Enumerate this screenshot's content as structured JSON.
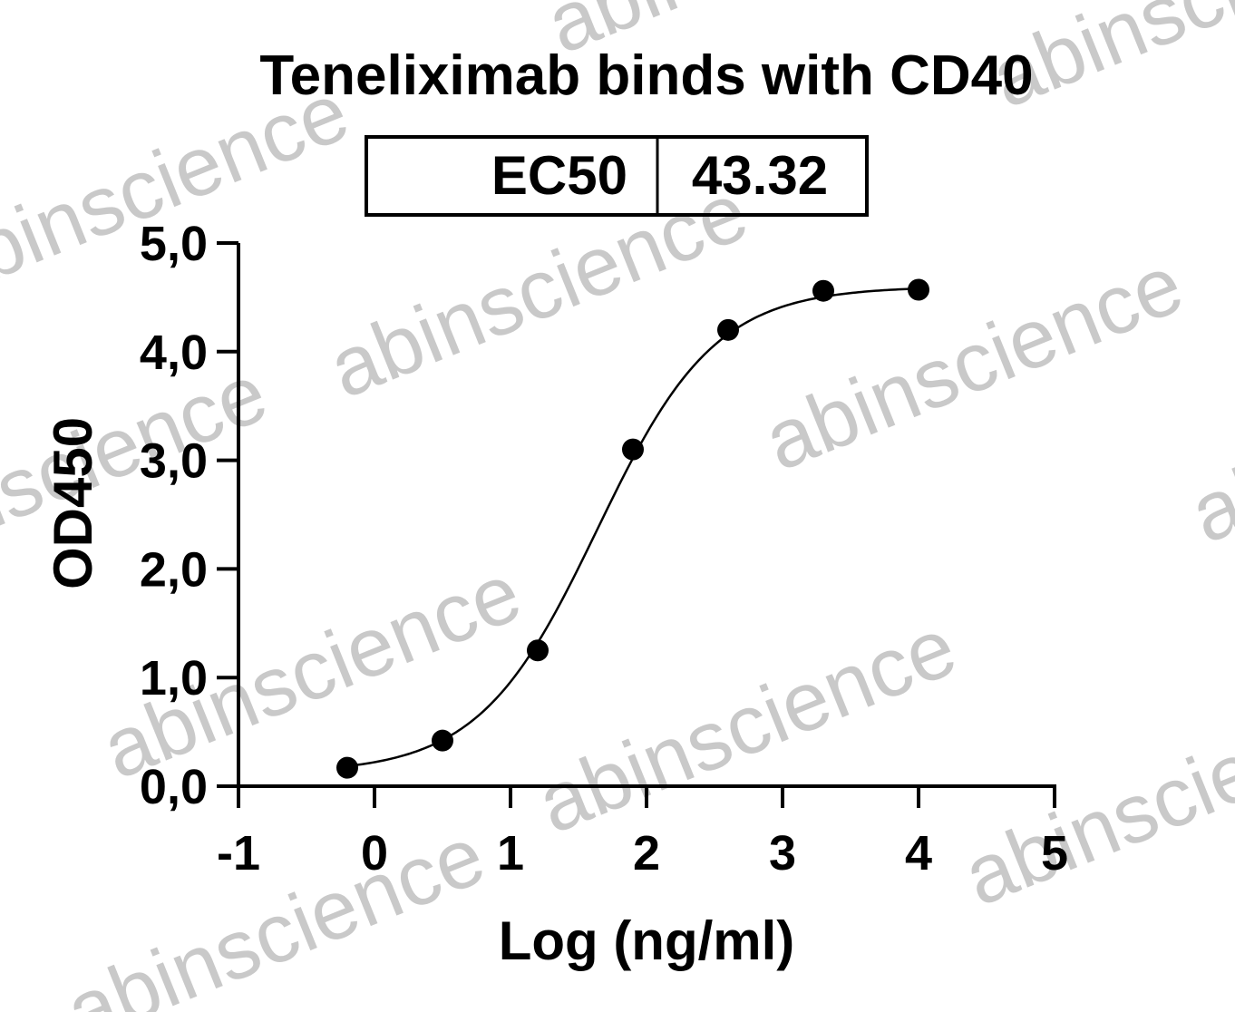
{
  "watermark_text": "abinscience",
  "chart_data": {
    "type": "scatter",
    "title": "Teneliximab binds with CD40",
    "xlabel": "Log (ng/ml)",
    "ylabel": "OD450",
    "xlim": [
      -1,
      5
    ],
    "ylim": [
      0,
      5
    ],
    "x_ticks": [
      "-1",
      "0",
      "1",
      "2",
      "3",
      "4",
      "5"
    ],
    "y_ticks": [
      "0,0",
      "1,0",
      "2,0",
      "3,0",
      "4,0",
      "5,0"
    ],
    "grid": false,
    "legend": "none",
    "ec50_table": {
      "label": "EC50",
      "value": "43.32"
    },
    "series": [
      {
        "x": [
          -0.2,
          0.5,
          1.2,
          1.9,
          2.6,
          3.3,
          4.0
        ],
        "y": [
          0.17,
          0.42,
          1.25,
          3.1,
          4.2,
          4.56,
          4.57
        ]
      }
    ],
    "fit": {
      "type": "4PL",
      "bottom": 0.12,
      "top": 4.6,
      "logEC50": 1.6366,
      "hill": 1.0
    }
  }
}
